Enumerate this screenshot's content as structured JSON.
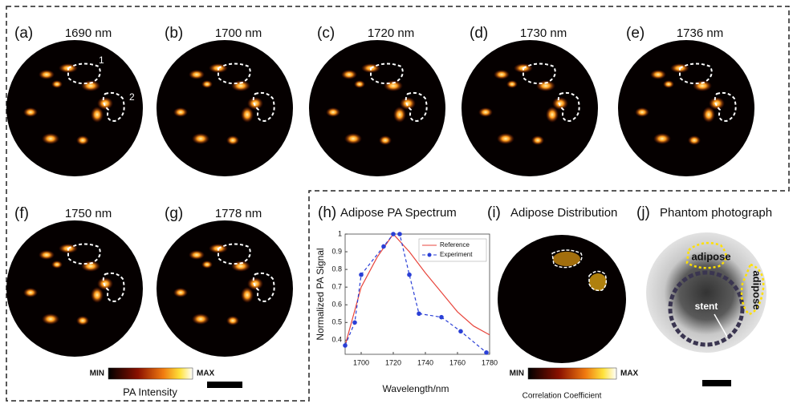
{
  "panels": [
    {
      "label": "(a)",
      "title": "1690 nm",
      "annotations": [
        "1",
        "2"
      ]
    },
    {
      "label": "(b)",
      "title": "1700 nm"
    },
    {
      "label": "(c)",
      "title": "1720 nm"
    },
    {
      "label": "(d)",
      "title": "1730 nm"
    },
    {
      "label": "(e)",
      "title": "1736 nm"
    },
    {
      "label": "(f)",
      "title": "1750 nm"
    },
    {
      "label": "(g)",
      "title": "1778 nm"
    }
  ],
  "pa_colorbar": {
    "min": "MIN",
    "max": "MAX",
    "label": "PA  Intensity"
  },
  "chart_data": {
    "type": "line",
    "panel_label": "(h)",
    "title": "Adipose PA Spectrum",
    "x_label": "Wavelength/nm",
    "y_label": "Normalized PA Signal",
    "xlim": [
      1690,
      1780
    ],
    "xticks": [
      1700,
      1720,
      1740,
      1760,
      1780
    ],
    "ylim": [
      0.32,
      1
    ],
    "yticks": [
      0.4,
      0.5,
      0.6,
      0.7,
      0.8,
      0.9,
      1
    ],
    "legend": "upper right",
    "series": [
      {
        "name": "Reference",
        "color": "#e8453c",
        "style": "solid",
        "markers": false,
        "x": [
          1690,
          1700,
          1710,
          1720,
          1730,
          1740,
          1750,
          1760,
          1770,
          1780
        ],
        "values": [
          0.37,
          0.7,
          0.87,
          1.0,
          0.9,
          0.78,
          0.67,
          0.56,
          0.48,
          0.43
        ]
      },
      {
        "name": "Experiment",
        "color": "#2a3fd6",
        "style": "dashed",
        "markers": true,
        "x": [
          1690,
          1696,
          1700,
          1714,
          1720,
          1724,
          1730,
          1736,
          1750,
          1762,
          1778
        ],
        "values": [
          0.37,
          0.5,
          0.77,
          0.93,
          1.0,
          1.0,
          0.77,
          0.55,
          0.53,
          0.45,
          0.33
        ]
      }
    ]
  },
  "distribution": {
    "label": "(i)",
    "title": "Adipose Distribution",
    "colorbar": {
      "min": "MIN",
      "max": "MAX",
      "label": "Correlation Coefficient"
    }
  },
  "photo": {
    "label": "(j)",
    "title": "Phantom photograph",
    "labels": [
      "adipose",
      "adipose",
      "stent"
    ]
  }
}
